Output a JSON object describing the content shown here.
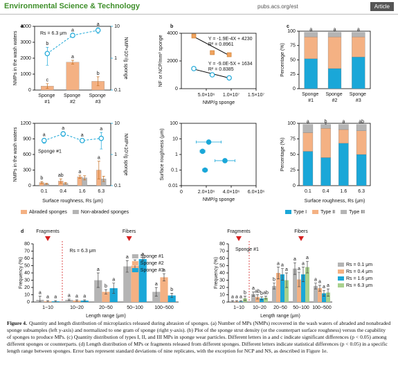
{
  "header": {
    "journal": "Environmental Science & Technology",
    "url": "pubs.acs.org/est",
    "tag": "Article"
  },
  "chart_data": [
    {
      "type": "bar",
      "panel": "a",
      "annotation": "Rs = 6.3 μm",
      "categories": [
        "Sponge #1",
        "Sponge #2",
        "Sponge #3"
      ],
      "ylabel": "NMPs in the wash waters",
      "y2label": "NMP×10⁵/g sponge",
      "ylim": [
        0,
        4000
      ],
      "yticks": [
        0,
        1000,
        2000,
        3000,
        4000
      ],
      "y2lim": [
        0.1,
        10
      ],
      "y2ticks": [
        0.1,
        1,
        10
      ],
      "y2log": true,
      "series": [
        {
          "color": "#f4b183",
          "values": [
            250,
            1750,
            550
          ],
          "errors": [
            150,
            120,
            280
          ],
          "letters": [
            "c",
            "a",
            "b"
          ]
        },
        {
          "axis": "y2",
          "color": "#1aa7d8",
          "values": [
            1.4,
            5.2,
            7.5
          ],
          "errors": [
            0.8,
            0.6,
            1.5
          ],
          "letters": [
            "b",
            "a",
            "a"
          ]
        }
      ]
    },
    {
      "type": "bar",
      "annotation": "Sponge #1",
      "categories": [
        "0.1",
        "0.4",
        "1.6",
        "6.3"
      ],
      "xlabel": "Surface roughness, Rs (μm)",
      "ylabel": "NMPs in the wash waters",
      "y2label": "NMP×10⁵/g sponge",
      "ylim": [
        0,
        1200
      ],
      "yticks": [
        0,
        300,
        600,
        900,
        1200
      ],
      "y2lim": [
        0.1,
        10
      ],
      "y2ticks": [
        0.1,
        1,
        10
      ],
      "y2log": true,
      "legend": "bottom",
      "series": [
        {
          "name": "Abraded sponges",
          "color": "#f4b183",
          "values": [
            60,
            90,
            170,
            300
          ],
          "errors": [
            20,
            40,
            30,
            170
          ],
          "letters": [
            "b",
            "ab",
            "a",
            "a"
          ]
        },
        {
          "name": "Non-abraded sponges",
          "color": "#b4b4b4",
          "values": [
            35,
            45,
            150,
            130
          ],
          "errors": [
            10,
            15,
            40,
            50
          ]
        },
        {
          "axis": "y2",
          "color": "#1aa7d8",
          "values": [
            2.8,
            4.6,
            2.8,
            3.3
          ],
          "errors": [
            0.5,
            0.8,
            0.4,
            1.8
          ],
          "letters": [
            "a",
            "a",
            "a",
            "a"
          ]
        }
      ]
    },
    {
      "type": "scatter",
      "panel": "b",
      "xlabel": "NMP/g sponge",
      "ylabel": "NF or NCP/mm³ sponge",
      "xlim": [
        0,
        15000000
      ],
      "xticks": [
        {
          "value": 5000000,
          "label": "5.0×10⁶"
        },
        {
          "value": 10000000,
          "label": "1.0×10⁷"
        },
        {
          "value": 15000000,
          "label": "1.5×10⁷"
        }
      ],
      "ylim": [
        0,
        4000
      ],
      "yticks": [
        0,
        2000,
        4000
      ],
      "series": [
        {
          "color": "#f0a35e",
          "marker": "square",
          "x": [
            2500000,
            6200000,
            9600000
          ],
          "values": [
            3800,
            2600,
            2450
          ],
          "fit": {
            "slope": -0.00019,
            "intercept": 4230
          },
          "fit_label": [
            "Y = -1.9E-4X + 4230",
            "R² = 0.8961"
          ]
        },
        {
          "color": "#1aa7d8",
          "marker": "open-circle",
          "x": [
            2500000,
            6200000,
            9600000
          ],
          "values": [
            1450,
            1000,
            780
          ],
          "fit": {
            "slope": -9e-05,
            "intercept": 1634
          },
          "fit_label": [
            "Y = -9.0E-5X + 1634",
            "R² = 0.8385"
          ]
        }
      ]
    },
    {
      "type": "scatter",
      "xlabel": "NMP/g sponge",
      "ylabel": "Surface roughness (μm)",
      "xlim": [
        0,
        6000000
      ],
      "xticks": [
        0,
        {
          "value": 2000000,
          "label": "2.0×10⁶"
        },
        {
          "value": 4000000,
          "label": "4.0×10⁶"
        },
        {
          "value": 6000000,
          "label": "6.0×10⁶"
        }
      ],
      "ylim": [
        0.01,
        100
      ],
      "ylog": true,
      "yticks": [
        0.01,
        0.1,
        1,
        10,
        100
      ],
      "series": [
        {
          "color": "#1aa7d8",
          "marker": "circle",
          "x": [
            2200000,
            1700000,
            3500000,
            1900000
          ],
          "values": [
            6.3,
            1.6,
            0.4,
            0.1
          ],
          "xerrors": [
            1000000,
            200000,
            800000,
            200000
          ]
        }
      ]
    },
    {
      "type": "stacked_bar",
      "panel": "c",
      "categories": [
        "Sponge #1",
        "Sponge #2",
        "Sponge #3"
      ],
      "ylabel": "Percentage (%)",
      "ylim": [
        0,
        100
      ],
      "yticks": [
        0,
        25,
        50,
        75,
        100
      ],
      "series": [
        {
          "name": "Type I",
          "color": "#1aa7d8",
          "values": [
            52,
            35,
            55
          ],
          "letters": [
            "a",
            "a",
            "a"
          ]
        },
        {
          "name": "Type II",
          "color": "#f4b183",
          "values": [
            38,
            55,
            35
          ],
          "letters": [
            "a",
            "a",
            "a"
          ]
        },
        {
          "name": "Type III",
          "color": "#b4b4b4",
          "values": [
            8,
            8,
            8
          ],
          "letters": [
            "a",
            "a",
            "a"
          ]
        }
      ]
    },
    {
      "type": "stacked_bar",
      "categories": [
        "0.1",
        "0.4",
        "1.6",
        "6.3"
      ],
      "xlabel": "Surface roughness, Rs (μm)",
      "ylabel": "Percentage (%)",
      "ylim": [
        0,
        100
      ],
      "yticks": [
        0,
        25,
        50,
        75,
        100
      ],
      "legend": "bottom",
      "series": [
        {
          "name": "Type I",
          "color": "#1aa7d8",
          "values": [
            55,
            45,
            68,
            50
          ],
          "letters": [
            "a",
            "a",
            "a",
            "a"
          ]
        },
        {
          "name": "Type II",
          "color": "#f4b183",
          "values": [
            30,
            47,
            22,
            38
          ],
          "letters": [
            "a",
            "a",
            "a",
            "a"
          ]
        },
        {
          "name": "Type III",
          "color": "#b4b4b4",
          "values": [
            13,
            6,
            8,
            10
          ],
          "letters": [
            "a",
            "b",
            "a",
            "ab"
          ]
        }
      ]
    },
    {
      "type": "grouped_bar",
      "panel": "d",
      "annotation": "Rs = 6.3 μm",
      "markers": [
        {
          "label": "Fragments"
        },
        {
          "label": "Fibers"
        }
      ],
      "categories": [
        "1~10",
        "10~20",
        "20~50",
        "50~100",
        "100~500"
      ],
      "xlabel": "Length range (μm)",
      "ylabel": "Frequency (%)",
      "ylim": [
        0,
        80
      ],
      "yticks": [
        0,
        10,
        20,
        30,
        40,
        50,
        60,
        70,
        80
      ],
      "legend": "inside-right",
      "series": [
        {
          "name": "Sponge #1",
          "color": "#b4b4b4",
          "values": [
            3,
            3,
            30,
            49,
            14
          ],
          "errors": [
            5,
            1,
            10,
            8,
            6
          ],
          "letters": [
            "a",
            "a",
            "a",
            "a",
            "a"
          ]
        },
        {
          "name": "Sponge #2",
          "color": "#f4b183",
          "values": [
            1,
            2,
            14,
            50,
            34
          ],
          "errors": [
            1,
            1,
            3,
            8,
            5
          ],
          "letters": [
            "a",
            "a",
            "b",
            "a",
            "a"
          ]
        },
        {
          "name": "Sponge #3",
          "color": "#1aa7d8",
          "values": [
            1,
            2,
            19,
            59,
            9
          ],
          "errors": [
            1,
            1,
            7,
            2,
            3
          ],
          "letters": [
            "a",
            "a",
            "a",
            "a",
            "b"
          ]
        }
      ]
    },
    {
      "type": "grouped_bar",
      "annotation": "Sponge #1",
      "markers": [
        {
          "label": "Fragments"
        },
        {
          "label": "Fibers"
        }
      ],
      "categories": [
        "1~10",
        "10~20",
        "20~50",
        "50~100",
        "100~500"
      ],
      "xlabel": "Length range (μm)",
      "ylabel": "Frequency (%)",
      "ylim": [
        0,
        80
      ],
      "yticks": [
        0,
        10,
        20,
        30,
        40,
        50,
        60,
        70,
        80
      ],
      "legend": "outside-right",
      "series": [
        {
          "name": "Rs = 0.1 μm",
          "color": "#b4b4b4",
          "values": [
            1,
            11,
            22,
            46,
            22
          ],
          "errors": [
            1,
            3,
            4,
            8,
            4
          ],
          "letters": [
            "a",
            "a",
            "b",
            "a",
            "a"
          ]
        },
        {
          "name": "Rs = 0.4 μm",
          "color": "#f4b183",
          "values": [
            1,
            7,
            40,
            31,
            19
          ],
          "errors": [
            1,
            3,
            8,
            10,
            4
          ],
          "letters": [
            "a",
            "ab",
            "a",
            "a",
            "a"
          ]
        },
        {
          "name": "Rs = 1.6 μm",
          "color": "#1aa7d8",
          "values": [
            1,
            5,
            38,
            38,
            12
          ],
          "errors": [
            1,
            2,
            8,
            10,
            4
          ],
          "letters": [
            "a",
            "b",
            "a",
            "a",
            "a"
          ]
        },
        {
          "name": "Rs = 6.3 μm",
          "color": "#a9d18e",
          "values": [
            5,
            6,
            30,
            48,
            13
          ],
          "errors": [
            3,
            2,
            10,
            8,
            5
          ],
          "letters": [
            "b",
            "ab",
            "a",
            "a",
            "a"
          ]
        }
      ]
    }
  ],
  "caption": {
    "label": "Figure 4.",
    "text": "Quantity and length distribution of microplastics released during abrasion of sponges. (a) Number of MPs (NMPs) recovered in the wash waters of abraded and nonabraded sponge subsamples (left y-axis) and normalized to one gram of sponge (right y-axis). (b) Plot of the sponge strut density (or the counterpart surface roughness) versus the capability of sponges to produce MPs. (c) Quantity distribution of types I, II, and III MPs in sponge wear particles. Different letters in a and c indicate significant differences (p < 0.05) among different sponges or counterparts. (d) Length distribution of MPs or fragments released from different sponges. Different letters indicate statistical differences (p < 0.05) in a specific length range between sponges. Error bars represent standard deviations of nine replicates, with the exception for NCP and NS, as described in Figure 1e."
  }
}
